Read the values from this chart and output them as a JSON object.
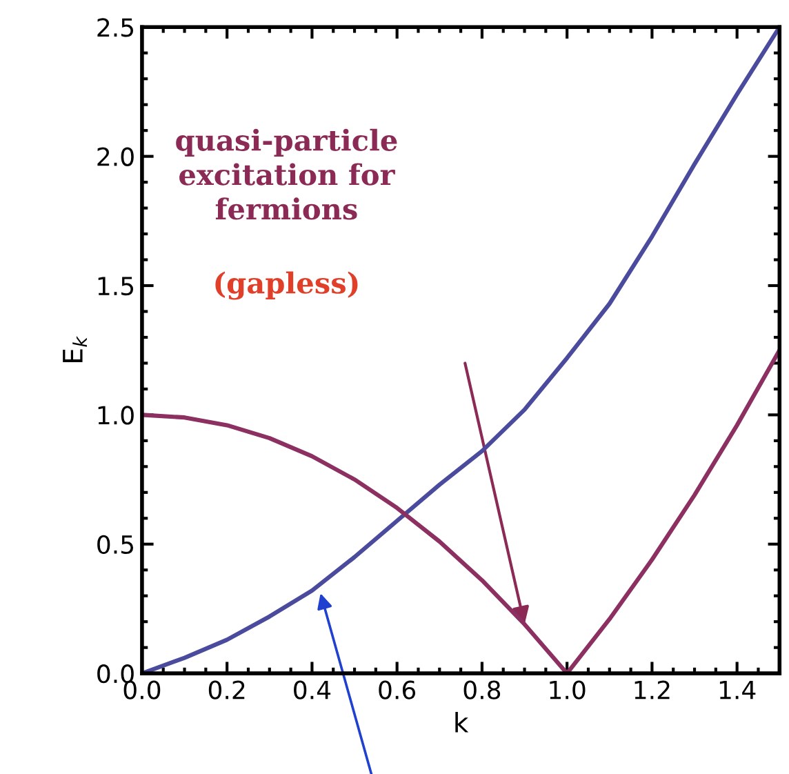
{
  "chart_data": {
    "type": "line",
    "xlabel": "k",
    "ylabel": "E$_{k}$",
    "x": [
      0,
      0.1,
      0.2,
      0.3,
      0.4,
      0.5,
      0.6,
      0.7,
      0.8,
      0.9,
      1.0,
      1.1,
      1.2,
      1.3,
      1.4,
      1.5
    ],
    "series": [
      {
        "color": "#4b4b9e",
        "values": [
          0,
          0.06,
          0.13,
          0.22,
          0.32,
          0.45,
          0.59,
          0.73,
          0.86,
          1.02,
          1.22,
          1.43,
          1.69,
          1.97,
          2.24,
          2.5
        ]
      },
      {
        "color": "#8b3060",
        "values": [
          1,
          0.99,
          0.96,
          0.91,
          0.84,
          0.75,
          0.64,
          0.51,
          0.36,
          0.19,
          0,
          0.21,
          0.44,
          0.69,
          0.96,
          1.25
        ]
      }
    ],
    "annotations": [
      "quasi-particle\nexcitation for\nfermions",
      "(gapless)"
    ],
    "xlim": [
      0,
      1.5
    ],
    "ylim": [
      0,
      2.5
    ],
    "xticks": [
      {
        "value": 0,
        "label": "0.0"
      },
      0.2,
      0.4,
      0.6,
      0.8,
      {
        "value": 1,
        "label": "1.0"
      },
      1.2,
      1.4
    ],
    "yticks": [
      {
        "value": 0,
        "label": "0.0"
      },
      0.5,
      {
        "value": 1,
        "label": "1.0"
      },
      1.5,
      {
        "value": 2,
        "label": "2.0"
      },
      2.5
    ],
    "grid": false,
    "legend": false
  }
}
